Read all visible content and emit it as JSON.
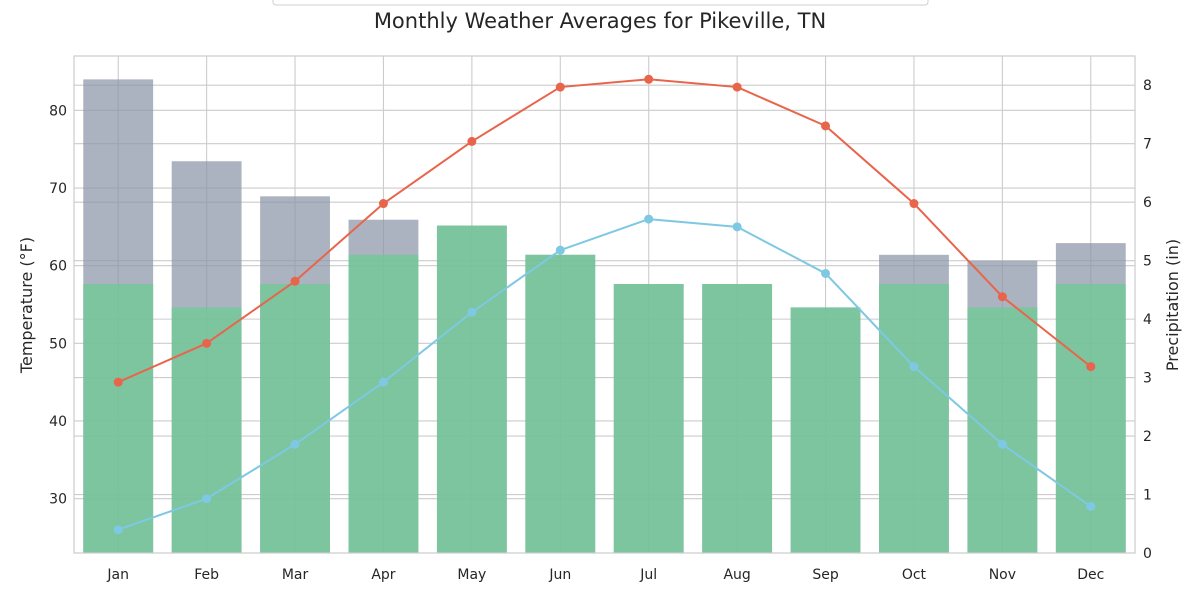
{
  "chart_data": {
    "type": "bar",
    "title": "Monthly Weather Averages for Pikeville, TN",
    "categories": [
      "Jan",
      "Feb",
      "Mar",
      "Apr",
      "May",
      "Jun",
      "Jul",
      "Aug",
      "Sep",
      "Oct",
      "Nov",
      "Dec"
    ],
    "ylabel": "Temperature (°F)",
    "y2label": "Precipitation (in)",
    "ylim": [
      23,
      87
    ],
    "y2lim": [
      0,
      8.5
    ],
    "yticks": [
      30,
      40,
      50,
      60,
      70,
      80
    ],
    "y2ticks": [
      0,
      1,
      2,
      3,
      4,
      5,
      6,
      7,
      8
    ],
    "grid": true,
    "series": [
      {
        "type": "bar",
        "axis": "right",
        "color": "#8a96a8",
        "values": [
          8.1,
          6.7,
          6.1,
          5.7,
          5.6,
          5.1,
          4.6,
          4.6,
          4.2,
          5.1,
          5.0,
          5.3
        ]
      },
      {
        "type": "bar",
        "axis": "right",
        "color": "#70c996",
        "values": [
          4.6,
          4.2,
          4.6,
          5.1,
          5.6,
          5.1,
          4.6,
          4.6,
          4.2,
          4.6,
          4.2,
          4.6
        ]
      },
      {
        "type": "line",
        "axis": "left",
        "color": "#e8654b",
        "values": [
          45,
          50,
          58,
          68,
          76,
          83,
          84,
          83,
          78,
          68,
          56,
          47
        ]
      },
      {
        "type": "line",
        "axis": "left",
        "color": "#7ec8e3",
        "values": [
          26,
          30,
          37,
          45,
          54,
          62,
          66,
          65,
          59,
          47,
          37,
          29
        ]
      }
    ]
  }
}
